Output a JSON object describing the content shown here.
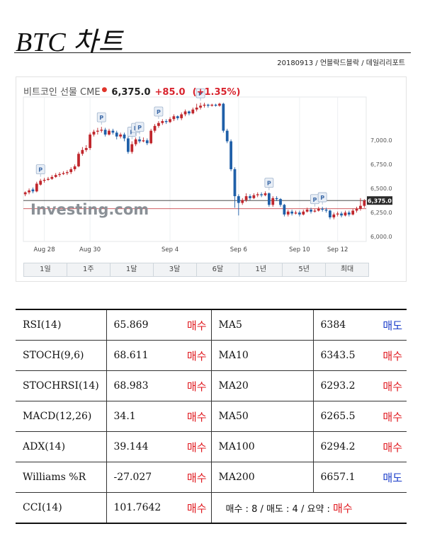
{
  "header": {
    "title": "BTC 차트",
    "byline": "20180913 / 언블락드블락 / 데일리리포트"
  },
  "chart_header": {
    "name": "비트코인 선물 CME",
    "price": "6,375.0",
    "change": "+85.0",
    "change_pct": "(+1.35%)"
  },
  "watermark": "Investing.com",
  "periods": [
    "1일",
    "1주",
    "1달",
    "3달",
    "6달",
    "1년",
    "5년",
    "최대"
  ],
  "colors": {
    "up": "#c0272d",
    "down": "#1f5fa8",
    "buy": "#e0191f",
    "sell": "#1a3cc9"
  },
  "chart_data": {
    "type": "candlestick",
    "x_tick_labels": [
      "Aug 28",
      "Aug 30",
      "Sep 4",
      "Sep 6",
      "Sep 10",
      "Sep 12"
    ],
    "y_tick_labels": [
      "7,000.0",
      "6,750.0",
      "6,500.0",
      "6,250.0",
      "6,000.0"
    ],
    "ylim": [
      5950,
      7450
    ],
    "current_price_label": "6,375.0",
    "reference_lines": [
      6375,
      6290
    ],
    "marker_label": "P",
    "markers": [
      4,
      20,
      28,
      29,
      30,
      35,
      46,
      64,
      76,
      78
    ],
    "candles": [
      [
        6440,
        6460,
        6420,
        6470
      ],
      [
        6460,
        6480,
        6440,
        6500
      ],
      [
        6490,
        6470,
        6450,
        6510
      ],
      [
        6470,
        6550,
        6460,
        6570
      ],
      [
        6540,
        6580,
        6530,
        6600
      ],
      [
        6580,
        6590,
        6560,
        6610
      ],
      [
        6590,
        6600,
        6580,
        6620
      ],
      [
        6600,
        6620,
        6590,
        6640
      ],
      [
        6620,
        6640,
        6610,
        6660
      ],
      [
        6640,
        6650,
        6620,
        6670
      ],
      [
        6650,
        6660,
        6640,
        6680
      ],
      [
        6660,
        6670,
        6640,
        6690
      ],
      [
        6670,
        6700,
        6650,
        6720
      ],
      [
        6700,
        6730,
        6680,
        6750
      ],
      [
        6730,
        6860,
        6720,
        6880
      ],
      [
        6860,
        6900,
        6840,
        6930
      ],
      [
        6900,
        6920,
        6880,
        6950
      ],
      [
        6920,
        7060,
        6900,
        7080
      ],
      [
        7060,
        7090,
        7040,
        7110
      ],
      [
        7090,
        7100,
        7060,
        7130
      ],
      [
        7100,
        7110,
        7080,
        7140
      ],
      [
        7110,
        7060,
        7040,
        7130
      ],
      [
        7060,
        7100,
        7050,
        7120
      ],
      [
        7100,
        7080,
        7060,
        7120
      ],
      [
        7080,
        7040,
        7010,
        7100
      ],
      [
        7040,
        7060,
        7020,
        7080
      ],
      [
        7060,
        7020,
        6990,
        7080
      ],
      [
        7020,
        6880,
        6860,
        7040
      ],
      [
        6880,
        6960,
        6860,
        6990
      ],
      [
        6960,
        7010,
        6940,
        7030
      ],
      [
        7010,
        6990,
        6970,
        7040
      ],
      [
        6990,
        7000,
        6980,
        7030
      ],
      [
        7000,
        6970,
        6950,
        7020
      ],
      [
        6970,
        7100,
        6960,
        7120
      ],
      [
        7100,
        7150,
        7080,
        7170
      ],
      [
        7150,
        7180,
        7130,
        7200
      ],
      [
        7180,
        7200,
        7160,
        7220
      ],
      [
        7200,
        7190,
        7170,
        7220
      ],
      [
        7190,
        7220,
        7180,
        7240
      ],
      [
        7220,
        7250,
        7200,
        7270
      ],
      [
        7250,
        7230,
        7210,
        7260
      ],
      [
        7230,
        7270,
        7210,
        7290
      ],
      [
        7270,
        7300,
        7250,
        7320
      ],
      [
        7300,
        7280,
        7260,
        7310
      ],
      [
        7280,
        7320,
        7270,
        7340
      ],
      [
        7320,
        7340,
        7300,
        7380
      ],
      [
        7340,
        7360,
        7320,
        7390
      ],
      [
        7360,
        7370,
        7340,
        7390
      ],
      [
        7370,
        7360,
        7340,
        7380
      ],
      [
        7360,
        7370,
        7350,
        7380
      ],
      [
        7370,
        7360,
        7350,
        7380
      ],
      [
        7360,
        7380,
        7350,
        7390
      ],
      [
        7380,
        7100,
        7080,
        7390
      ],
      [
        7100,
        6990,
        6970,
        7120
      ],
      [
        6990,
        6700,
        6680,
        7010
      ],
      [
        6700,
        6420,
        6300,
        6720
      ],
      [
        6420,
        6350,
        6220,
        6440
      ],
      [
        6350,
        6380,
        6330,
        6400
      ],
      [
        6380,
        6420,
        6360,
        6450
      ],
      [
        6420,
        6400,
        6380,
        6440
      ],
      [
        6400,
        6430,
        6390,
        6450
      ],
      [
        6430,
        6440,
        6410,
        6460
      ],
      [
        6440,
        6430,
        6410,
        6460
      ],
      [
        6430,
        6450,
        6420,
        6470
      ],
      [
        6450,
        6330,
        6310,
        6460
      ],
      [
        6330,
        6400,
        6310,
        6420
      ],
      [
        6400,
        6390,
        6370,
        6420
      ],
      [
        6390,
        6330,
        6310,
        6400
      ],
      [
        6330,
        6230,
        6210,
        6340
      ],
      [
        6230,
        6260,
        6210,
        6280
      ],
      [
        6260,
        6240,
        6220,
        6280
      ],
      [
        6240,
        6250,
        6230,
        6270
      ],
      [
        6250,
        6230,
        6210,
        6270
      ],
      [
        6230,
        6260,
        6220,
        6280
      ],
      [
        6260,
        6280,
        6250,
        6300
      ],
      [
        6280,
        6260,
        6240,
        6300
      ],
      [
        6260,
        6270,
        6250,
        6290
      ],
      [
        6270,
        6290,
        6260,
        6310
      ],
      [
        6290,
        6280,
        6260,
        6310
      ],
      [
        6280,
        6270,
        6250,
        6300
      ],
      [
        6270,
        6200,
        6180,
        6280
      ],
      [
        6200,
        6230,
        6180,
        6250
      ],
      [
        6230,
        6240,
        6210,
        6260
      ],
      [
        6240,
        6220,
        6200,
        6260
      ],
      [
        6220,
        6250,
        6210,
        6270
      ],
      [
        6250,
        6230,
        6210,
        6270
      ],
      [
        6230,
        6270,
        6220,
        6290
      ],
      [
        6270,
        6290,
        6250,
        6310
      ],
      [
        6290,
        6320,
        6270,
        6400
      ],
      [
        6320,
        6375,
        6300,
        6390
      ]
    ]
  },
  "indicators": [
    {
      "name": "RSI(14)",
      "value": "65.869",
      "signal": "매수",
      "signal_type": "buy",
      "ma_name": "MA5",
      "ma_value": "6384",
      "ma_signal": "매도",
      "ma_signal_type": "sell"
    },
    {
      "name": "STOCH(9,6)",
      "value": "68.611",
      "signal": "매수",
      "signal_type": "buy",
      "ma_name": "MA10",
      "ma_value": "6343.5",
      "ma_signal": "매수",
      "ma_signal_type": "buy"
    },
    {
      "name": "STOCHRSI(14)",
      "value": "68.983",
      "signal": "매수",
      "signal_type": "buy",
      "ma_name": "MA20",
      "ma_value": "6293.2",
      "ma_signal": "매수",
      "ma_signal_type": "buy"
    },
    {
      "name": "MACD(12,26)",
      "value": "34.1",
      "signal": "매수",
      "signal_type": "buy",
      "ma_name": "MA50",
      "ma_value": "6265.5",
      "ma_signal": "매수",
      "ma_signal_type": "buy"
    },
    {
      "name": "ADX(14)",
      "value": "39.144",
      "signal": "매수",
      "signal_type": "buy",
      "ma_name": "MA100",
      "ma_value": "6294.2",
      "ma_signal": "매수",
      "ma_signal_type": "buy"
    },
    {
      "name": "Williams %R",
      "value": "-27.027",
      "signal": "매수",
      "signal_type": "buy",
      "ma_name": "MA200",
      "ma_value": "6657.1",
      "ma_signal": "매도",
      "ma_signal_type": "sell"
    }
  ],
  "cci": {
    "name": "CCI(14)",
    "value": "101.7642",
    "signal": "매수"
  },
  "summary": {
    "text": "매수 : 8 / 매도 : 4 / 요약 : ",
    "result": "매수"
  }
}
